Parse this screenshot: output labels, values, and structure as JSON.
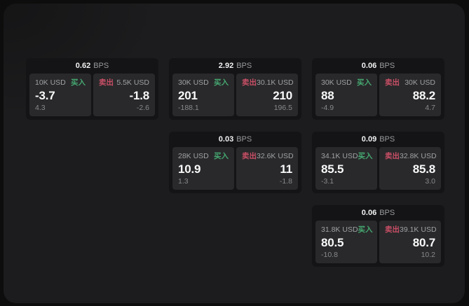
{
  "app": {
    "name": "bps-quote-board"
  },
  "labels": {
    "bps_suffix": "BPS",
    "buy": "买入",
    "sell": "卖出"
  },
  "colors": {
    "buy_accent": "#46a871",
    "sell_accent": "#c94f66",
    "panel_background": "#1c1c1e",
    "card_background": "#141416",
    "tile_background": "#29292b",
    "primary_text": "#f8f9f9",
    "muted_text": "#9fa1a4"
  },
  "grid": {
    "columns": 3,
    "rows": 3
  },
  "cards": [
    {
      "id": "card-1",
      "row": 1,
      "col": 1,
      "bps": "0.62",
      "buy": {
        "amount": "10K USD",
        "price": "-3.7",
        "delta": "4.3"
      },
      "sell": {
        "amount": "5.5K USD",
        "price": "-1.8",
        "delta": "-2.6"
      }
    },
    {
      "id": "card-2",
      "row": 1,
      "col": 2,
      "bps": "2.92",
      "buy": {
        "amount": "30K USD",
        "price": "201",
        "delta": "-188.1"
      },
      "sell": {
        "amount": "30.1K USD",
        "price": "210",
        "delta": "196.5"
      }
    },
    {
      "id": "card-3",
      "row": 1,
      "col": 3,
      "bps": "0.06",
      "buy": {
        "amount": "30K USD",
        "price": "88",
        "delta": "-4.9"
      },
      "sell": {
        "amount": "30K USD",
        "price": "88.2",
        "delta": "4.7"
      }
    },
    {
      "id": "card-4",
      "row": 2,
      "col": 2,
      "bps": "0.03",
      "buy": {
        "amount": "28K USD",
        "price": "10.9",
        "delta": "1.3"
      },
      "sell": {
        "amount": "32.6K USD",
        "price": "11",
        "delta": "-1.8"
      }
    },
    {
      "id": "card-5",
      "row": 2,
      "col": 3,
      "bps": "0.09",
      "buy": {
        "amount": "34.1K USD",
        "price": "85.5",
        "delta": "-3.1"
      },
      "sell": {
        "amount": "32.8K USD",
        "price": "85.8",
        "delta": "3.0"
      }
    },
    {
      "id": "card-6",
      "row": 3,
      "col": 3,
      "bps": "0.06",
      "buy": {
        "amount": "31.8K USD",
        "price": "80.5",
        "delta": "-10.8"
      },
      "sell": {
        "amount": "39.1K USD",
        "price": "80.7",
        "delta": "10.2"
      }
    }
  ]
}
